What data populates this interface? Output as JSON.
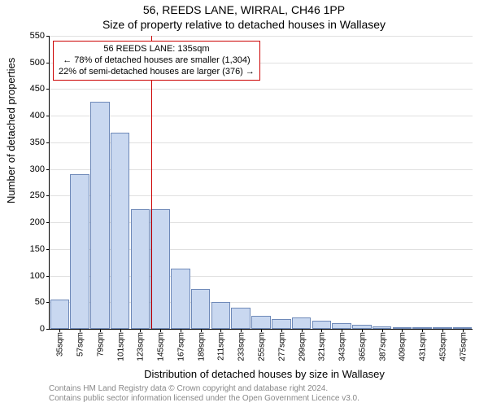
{
  "title_main": "56, REEDS LANE, WIRRAL, CH46 1PP",
  "title_sub": "Size of property relative to detached houses in Wallasey",
  "ylabel": "Number of detached properties",
  "xlabel": "Distribution of detached houses by size in Wallasey",
  "footer_line1": "Contains HM Land Registry data © Crown copyright and database right 2024.",
  "footer_line2": "Contains public sector information licensed under the Open Government Licence v3.0.",
  "chart": {
    "type": "histogram",
    "plot_background": "#ffffff",
    "grid_color": "#e0e0e0",
    "axis_color": "#000000",
    "bar_fill": "#c9d8f0",
    "bar_stroke": "#6e89b8",
    "bar_stroke_width": 1,
    "ylim": [
      0,
      550
    ],
    "ytick_step": 50,
    "x_start": 35,
    "x_step": 22,
    "x_count": 21,
    "x_unit": "sqm",
    "values": [
      55,
      290,
      427,
      368,
      225,
      225,
      113,
      75,
      50,
      40,
      25,
      18,
      22,
      15,
      10,
      8,
      5,
      3,
      2,
      2,
      2
    ],
    "bar_rel_width": 0.95
  },
  "marker": {
    "x_value": 135,
    "color": "#cc0000",
    "width": 1
  },
  "annotation": {
    "line1": "56 REEDS LANE: 135sqm",
    "line2": "← 78% of detached houses are smaller (1,304)",
    "line3": "22% of semi-detached houses are larger (376) →",
    "border_color": "#cc0000",
    "border_width": 1,
    "background": "#ffffff",
    "fontsize": 11
  },
  "tick_fontsize": 11,
  "label_fontsize": 13,
  "footer_color": "#888888"
}
